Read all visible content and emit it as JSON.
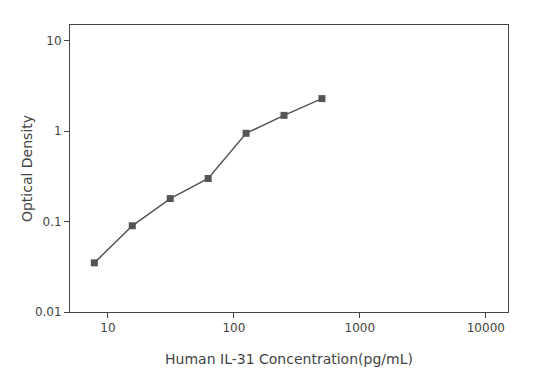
{
  "chart_data": {
    "type": "line",
    "x": [
      7.8,
      15.6,
      31.25,
      62.5,
      125,
      250,
      500
    ],
    "values": [
      0.035,
      0.09,
      0.18,
      0.3,
      0.95,
      1.5,
      2.3
    ],
    "xlabel": "Human IL-31 Concentration(pg/mL)",
    "ylabel": "Optical Density",
    "xlim": [
      5,
      15000
    ],
    "ylim": [
      0.01,
      15
    ],
    "xticks": [
      10,
      100,
      1000,
      10000
    ],
    "yticks": [
      0.01,
      0.1,
      1,
      10
    ],
    "log": true,
    "grid": false,
    "color": "#555555",
    "marker": "square",
    "line_style": "solid"
  }
}
